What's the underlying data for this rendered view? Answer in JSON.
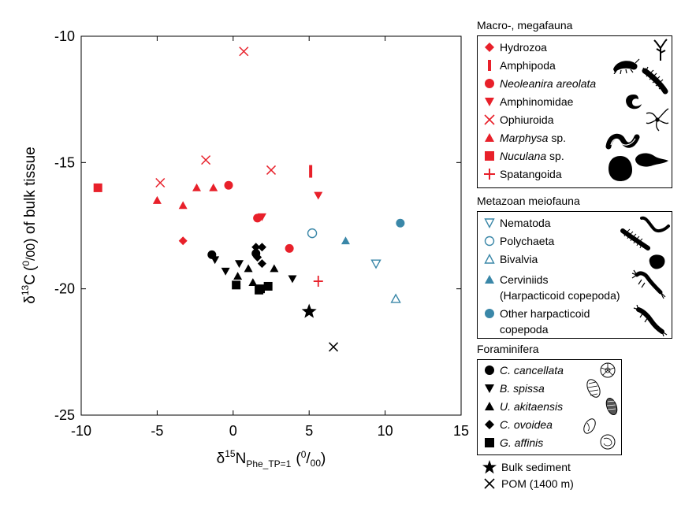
{
  "chart_data": {
    "type": "scatter",
    "xlabel_delta": "δ",
    "xlabel_sup": "15",
    "xlabel_main": "N",
    "xlabel_sub": "Phe_TP=1",
    "xlabel_unit": "(0/00)",
    "ylabel": "δ13C (0/00) of bulk tissue",
    "ylabel_delta": "δ",
    "ylabel_sup": "13",
    "ylabel_main": "C",
    "ylabel_unit_open": "(",
    "ylabel_unit_num": "0",
    "ylabel_unit_den": "/00",
    "ylabel_unit_close": ")",
    "ylabel_tail": " of bulk tissue",
    "xlim": [
      -10,
      15
    ],
    "ylim": [
      -25,
      -10
    ],
    "xticks": [
      -10,
      -5,
      0,
      5,
      10,
      15
    ],
    "yticks": [
      -10,
      -15,
      -20,
      -25
    ],
    "grid": false,
    "series": [
      {
        "name": "Hydrozoa",
        "group": "macro",
        "marker": "diamond",
        "color": "#e8202a",
        "points": [
          [
            -3.3,
            -18.1
          ]
        ]
      },
      {
        "name": "Amphipoda",
        "group": "macro",
        "marker": "bar",
        "color": "#e8202a",
        "points": [
          [
            5.1,
            -15.35
          ]
        ]
      },
      {
        "name": "Neoleanira areolata",
        "group": "macro",
        "marker": "circle",
        "color": "#e8202a",
        "points": [
          [
            -0.3,
            -15.9
          ],
          [
            3.7,
            -18.4
          ],
          [
            1.6,
            -17.2
          ]
        ]
      },
      {
        "name": "Amphinomidae",
        "group": "macro",
        "marker": "tri-down",
        "color": "#e8202a",
        "points": [
          [
            1.9,
            -17.15
          ],
          [
            5.6,
            -16.3
          ]
        ]
      },
      {
        "name": "Ophiuroida",
        "group": "macro",
        "marker": "x",
        "color": "#e8202a",
        "points": [
          [
            0.7,
            -10.6
          ],
          [
            -1.8,
            -14.9
          ],
          [
            -4.8,
            -15.8
          ],
          [
            2.5,
            -15.3
          ]
        ]
      },
      {
        "name": "Marphysa sp.",
        "group": "macro",
        "marker": "tri-up",
        "color": "#e8202a",
        "points": [
          [
            -5.0,
            -16.5
          ],
          [
            -3.3,
            -16.7
          ],
          [
            -2.4,
            -16.0
          ],
          [
            -1.3,
            -16.0
          ]
        ]
      },
      {
        "name": "Nuculana sp.",
        "group": "macro",
        "marker": "square",
        "color": "#e8202a",
        "points": [
          [
            -8.9,
            -16.0
          ]
        ]
      },
      {
        "name": "Spatangoida",
        "group": "macro",
        "marker": "plus",
        "color": "#e8202a",
        "points": [
          [
            5.6,
            -19.7
          ]
        ]
      },
      {
        "name": "Nematoda",
        "group": "meio",
        "marker": "tri-down-open",
        "color": "#3a87a8",
        "points": [
          [
            9.4,
            -19.0
          ]
        ]
      },
      {
        "name": "Polychaeta",
        "group": "meio",
        "marker": "circle-open",
        "color": "#3a87a8",
        "points": [
          [
            5.2,
            -17.8
          ]
        ]
      },
      {
        "name": "Bivalvia",
        "group": "meio",
        "marker": "tri-up-open",
        "color": "#3a87a8",
        "points": [
          [
            10.7,
            -20.4
          ]
        ]
      },
      {
        "name": "Cerviniids (Harpacticoid copepoda)",
        "group": "meio",
        "marker": "tri-up",
        "color": "#3a87a8",
        "points": [
          [
            7.4,
            -18.1
          ]
        ]
      },
      {
        "name": "Other harpacticoid copepoda",
        "group": "meio",
        "marker": "circle",
        "color": "#3a87a8",
        "points": [
          [
            11.0,
            -17.4
          ]
        ]
      },
      {
        "name": "C. cancellata",
        "group": "foram",
        "marker": "circle",
        "color": "#000000",
        "points": [
          [
            -1.4,
            -18.65
          ],
          [
            1.5,
            -18.6
          ]
        ]
      },
      {
        "name": "B. spissa",
        "group": "foram",
        "marker": "tri-down",
        "color": "#000000",
        "points": [
          [
            -0.5,
            -19.3
          ],
          [
            3.9,
            -19.6
          ],
          [
            -1.2,
            -18.85
          ],
          [
            0.4,
            -19.0
          ]
        ]
      },
      {
        "name": "U. akitaensis",
        "group": "foram",
        "marker": "tri-up",
        "color": "#000000",
        "points": [
          [
            0.3,
            -19.5
          ],
          [
            1.0,
            -19.2
          ],
          [
            2.7,
            -19.2
          ],
          [
            1.3,
            -19.75
          ]
        ]
      },
      {
        "name": "C. ovoidea",
        "group": "foram",
        "marker": "diamond",
        "color": "#000000",
        "points": [
          [
            1.5,
            -18.35
          ],
          [
            1.9,
            -18.35
          ],
          [
            1.9,
            -19.0
          ],
          [
            1.6,
            -18.75
          ]
        ]
      },
      {
        "name": "G. affinis",
        "group": "foram",
        "marker": "square",
        "color": "#000000",
        "points": [
          [
            0.2,
            -19.85
          ],
          [
            1.8,
            -20.0
          ],
          [
            2.3,
            -19.9
          ],
          [
            1.7,
            -20.05
          ]
        ]
      },
      {
        "name": "Bulk sediment",
        "group": "other",
        "marker": "star",
        "color": "#000000",
        "points": [
          [
            5.0,
            -20.9
          ]
        ]
      },
      {
        "name": "POM (1400 m)",
        "group": "other",
        "marker": "x",
        "color": "#000000",
        "points": [
          [
            6.6,
            -22.3
          ]
        ]
      }
    ]
  },
  "legend": {
    "macro_title": "Macro-, megafauna",
    "meio_title": "Metazoan meiofauna",
    "foram_title": "Foraminifera",
    "macro_items": [
      {
        "label": "Hydrozoa",
        "italic": false
      },
      {
        "label": "Amphipoda",
        "italic": false
      },
      {
        "label": "Neoleanira areolata",
        "italic": true
      },
      {
        "label": "Amphinomidae",
        "italic": false
      },
      {
        "label": "Ophiuroida",
        "italic": false
      },
      {
        "label_it": "Marphysa",
        "label_rest": " sp."
      },
      {
        "label_it": "Nuculana",
        "label_rest": " sp."
      },
      {
        "label": "Spatangoida",
        "italic": false
      }
    ],
    "meio_items": [
      {
        "label": "Nematoda"
      },
      {
        "label": "Polychaeta"
      },
      {
        "label": "Bivalvia"
      },
      {
        "label": "Cerviniids",
        "label2": "(Harpacticoid copepoda)"
      },
      {
        "label": "Other harpacticoid",
        "label2": "copepoda"
      }
    ],
    "foram_items": [
      {
        "label": "C. cancellata"
      },
      {
        "label": "B. spissa"
      },
      {
        "label": "U. akitaensis"
      },
      {
        "label": "C. ovoidea"
      },
      {
        "label": "G. affinis"
      }
    ],
    "other_items": [
      {
        "label": "Bulk sediment"
      },
      {
        "label": "POM (1400 m)"
      }
    ]
  },
  "colors": {
    "macro": "#e8202a",
    "meio": "#3a87a8",
    "foram": "#000000"
  },
  "icons": [
    "hydrozoa-silhouette-icon",
    "amphipoda-silhouette-icon",
    "polychaete-silhouette-icon",
    "amphinomidae-silhouette-icon",
    "ophiuroid-silhouette-icon",
    "marphysa-silhouette-icon",
    "nuculana-silhouette-icon",
    "spatangoid-silhouette-icon",
    "nematode-silhouette-icon",
    "meio-polychaete-silhouette-icon",
    "meio-bivalve-silhouette-icon",
    "cerviniid-silhouette-icon",
    "harpacticoid-silhouette-icon",
    "foram-cancellata-icon",
    "foram-spissa-icon",
    "foram-akitaensis-icon",
    "foram-ovoidea-icon",
    "foram-affinis-icon"
  ]
}
